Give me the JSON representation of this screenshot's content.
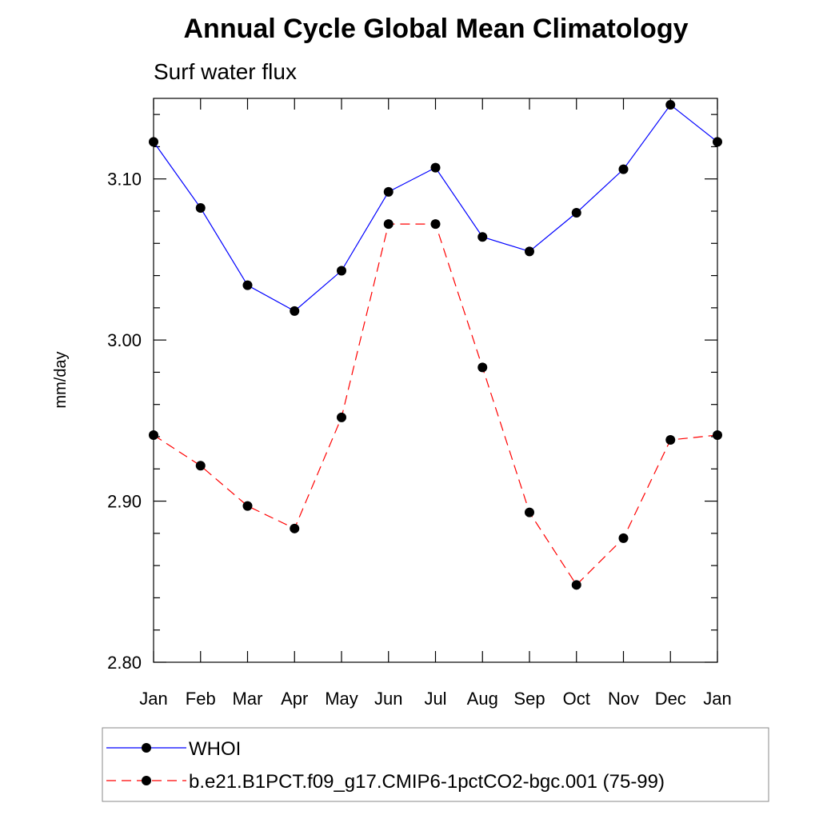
{
  "chart_data": {
    "type": "line",
    "title": "Annual Cycle Global Mean Climatology",
    "subtitle": "Surf water flux",
    "ylabel": "mm/day",
    "xlabel": "",
    "categories": [
      "Jan",
      "Feb",
      "Mar",
      "Apr",
      "May",
      "Jun",
      "Jul",
      "Aug",
      "Sep",
      "Oct",
      "Nov",
      "Dec",
      "Jan"
    ],
    "ylim": [
      2.8,
      3.15
    ],
    "yticks": [
      "2.80",
      "2.90",
      "3.00",
      "3.10"
    ],
    "grid": false,
    "legend_position": "bottom",
    "series": [
      {
        "name": "WHOI",
        "color": "#0000ff",
        "dash": "solid",
        "marker": "filled-circle",
        "values": [
          3.123,
          3.082,
          3.034,
          3.018,
          3.043,
          3.092,
          3.107,
          3.064,
          3.055,
          3.079,
          3.106,
          3.146,
          3.123
        ]
      },
      {
        "name": "b.e21.B1PCT.f09_g17.CMIP6-1pctCO2-bgc.001 (75-99)",
        "color": "#ff0000",
        "dash": "dashed",
        "marker": "filled-circle",
        "values": [
          2.941,
          2.922,
          2.897,
          2.883,
          2.952,
          3.072,
          3.072,
          2.983,
          2.893,
          2.848,
          2.877,
          2.938,
          2.941
        ]
      }
    ]
  }
}
